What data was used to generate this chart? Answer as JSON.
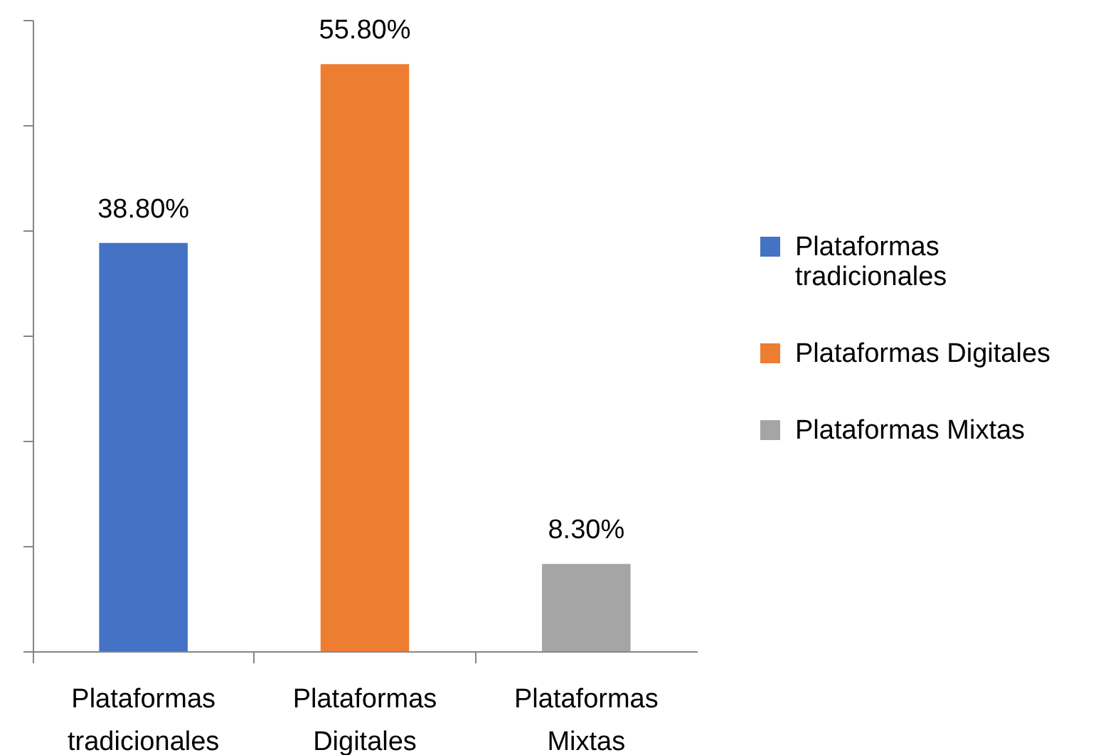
{
  "chart_data": {
    "type": "bar",
    "categories": [
      "Plataformas tradicionales",
      "Plataformas Digitales",
      "Plataformas Mixtas"
    ],
    "stacked": true,
    "series": [
      {
        "name": "Plataformas tradicionales",
        "color": "#4472c4",
        "values": [
          38.8,
          null,
          null
        ],
        "value_labels": [
          "38.80%",
          null,
          null
        ]
      },
      {
        "name": "Plataformas Digitales",
        "color": "#ed7d31",
        "values": [
          null,
          55.8,
          null
        ],
        "value_labels": [
          null,
          "55.80%",
          null
        ]
      },
      {
        "name": "Plataformas Mixtas",
        "color": "#a5a5a5",
        "values": [
          null,
          null,
          8.3
        ],
        "value_labels": [
          null,
          null,
          "8.30%"
        ]
      }
    ],
    "ylim": [
      0,
      60
    ],
    "yticks": [
      {
        "value": 0,
        "label": null
      },
      {
        "value": 10,
        "label": null
      },
      {
        "value": 20,
        "label": null
      },
      {
        "value": 30,
        "label": null
      },
      {
        "value": 40,
        "label": null
      },
      {
        "value": 50,
        "label": null
      },
      {
        "value": 60,
        "label": null
      }
    ],
    "tick_labels": "x",
    "legend": "right"
  }
}
